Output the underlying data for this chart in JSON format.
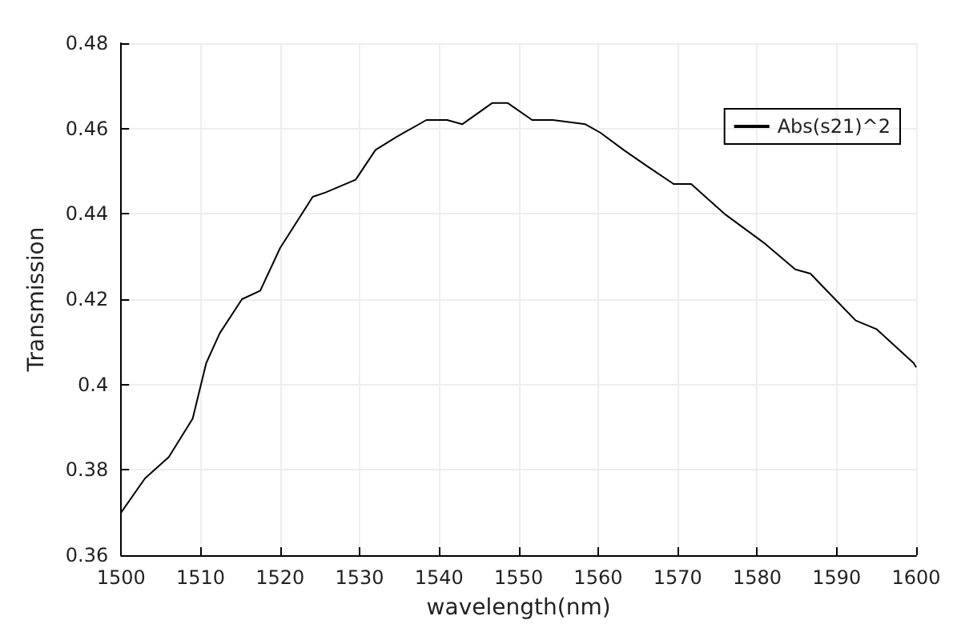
{
  "chart_data": {
    "type": "line",
    "xlabel": "wavelength(nm)",
    "ylabel": "Transmission",
    "xlim": [
      1500,
      1600
    ],
    "ylim": [
      0.36,
      0.48
    ],
    "xticks": [
      1500,
      1510,
      1520,
      1530,
      1540,
      1550,
      1560,
      1570,
      1580,
      1590,
      1600
    ],
    "yticks": [
      0.36,
      0.38,
      0.4,
      0.42,
      0.44,
      0.46,
      0.48
    ],
    "grid": true,
    "legend": "top right",
    "marker": "none",
    "line_style": "solid",
    "series": [
      {
        "name": "Abs(s21)^2",
        "color": "#000000",
        "x": [
          1500,
          1503,
          1506,
          1509,
          1510.7,
          1512.4,
          1515.2,
          1517.5,
          1520,
          1524.1,
          1525.7,
          1529.5,
          1532,
          1534.6,
          1538.4,
          1541,
          1542.9,
          1546.7,
          1548.6,
          1551.7,
          1554.3,
          1558.4,
          1560.3,
          1563.2,
          1566.3,
          1569.5,
          1571.7,
          1575.9,
          1581,
          1584.8,
          1586.7,
          1589.8,
          1592.4,
          1595,
          1599.7,
          1600
        ],
        "values": [
          0.37,
          0.378,
          0.383,
          0.392,
          0.405,
          0.412,
          0.42,
          0.422,
          0.432,
          0.444,
          0.445,
          0.448,
          0.455,
          0.458,
          0.462,
          0.462,
          0.461,
          0.466,
          0.466,
          0.462,
          0.462,
          0.461,
          0.459,
          0.455,
          0.451,
          0.447,
          0.447,
          0.44,
          0.433,
          0.427,
          0.426,
          0.42,
          0.415,
          0.413,
          0.405,
          0.404
        ]
      }
    ]
  }
}
